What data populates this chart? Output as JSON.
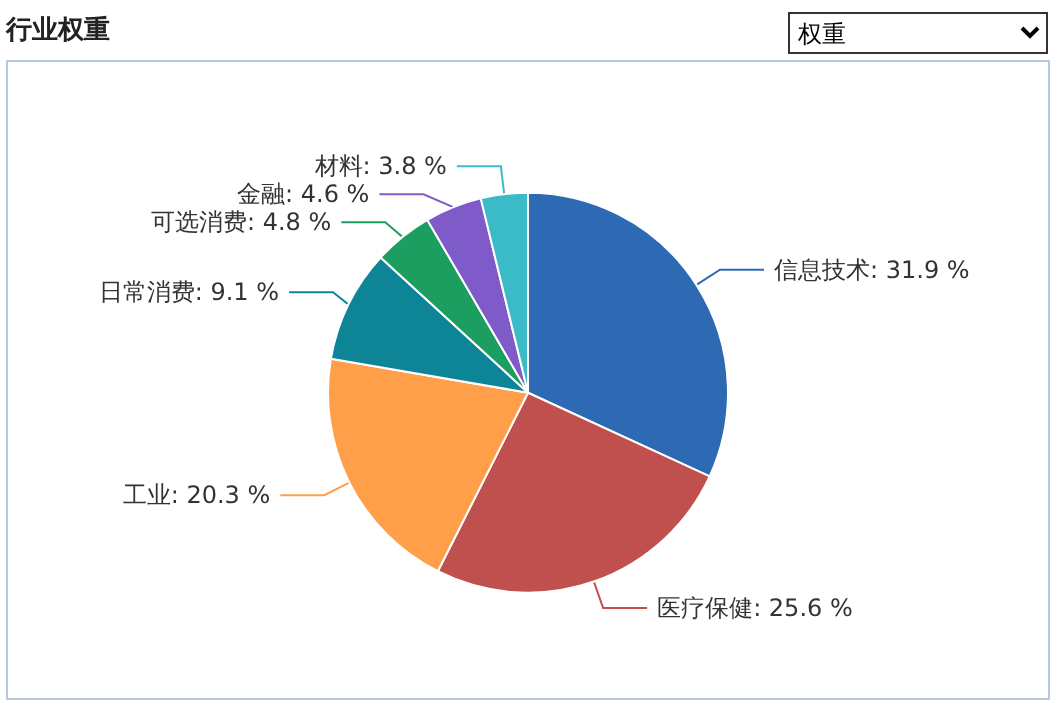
{
  "chart_data": {
    "type": "pie",
    "title": "行业权重",
    "annotations": [
      "权重"
    ],
    "categories": [
      "信息技术",
      "医疗保健",
      "工业",
      "日常消费",
      "可选消费",
      "金融",
      "材料"
    ],
    "values": [
      31.9,
      25.6,
      20.3,
      9.1,
      4.8,
      4.6,
      3.8
    ],
    "value_labels": [
      "31.9 %",
      "25.6 %",
      "20.3 %",
      "9.1 %",
      "4.8 %",
      "4.6 %",
      "3.8 %"
    ],
    "colors": [
      "#2e69b3",
      "#c0504d",
      "#ff9f4a",
      "#0e8597",
      "#1c9e61",
      "#7e5bc8",
      "#3bbac8"
    ],
    "legend": false
  }
}
